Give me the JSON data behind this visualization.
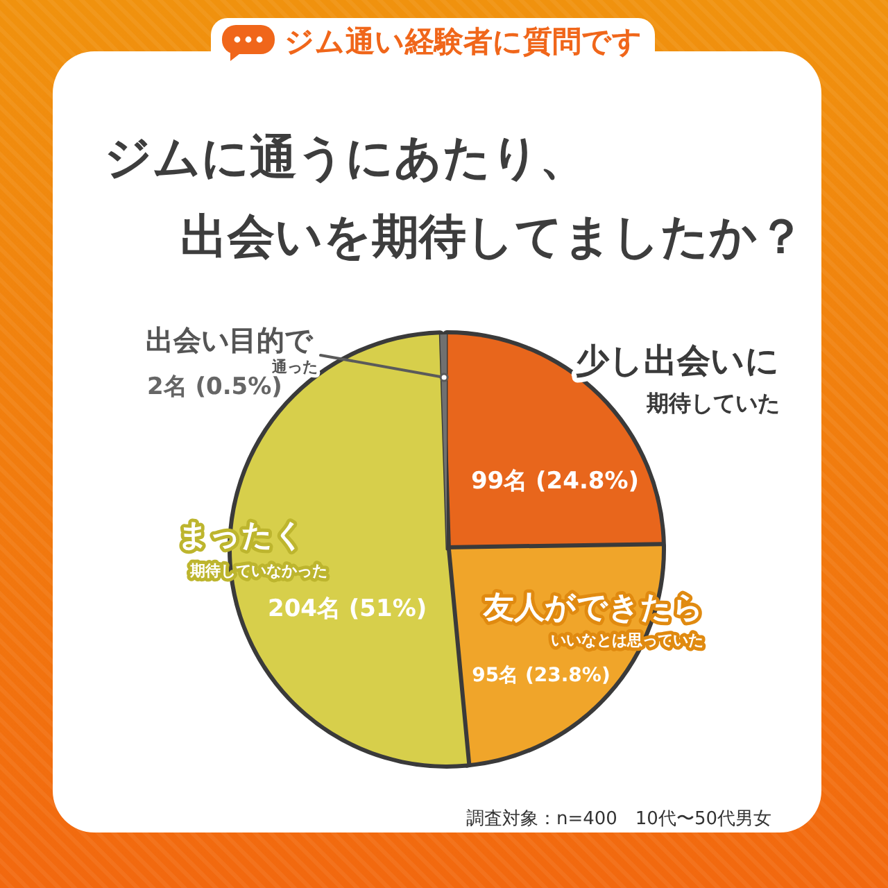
{
  "chart_data": {
    "type": "pie",
    "subtitle": "ジム通い経験者に質問です",
    "title": "ジムに通うにあたり、出会いを期待してましたか？",
    "categories": [
      "少し出会いに期待していた",
      "友人ができたらいいなとは思っていた",
      "まったく期待していなかった",
      "出会い目的で通った"
    ],
    "values": [
      99,
      95,
      204,
      2
    ],
    "value_labels": [
      "99名 (24.8%)",
      "95名 (23.8%)",
      "204名 (51%)",
      "2名 (0.5%)"
    ],
    "colors": [
      "#e8661c",
      "#f0a52a",
      "#d7cf4b",
      "#707070"
    ],
    "annotations": [
      "調査対象：n=400　10代〜50代男女"
    ]
  }
}
